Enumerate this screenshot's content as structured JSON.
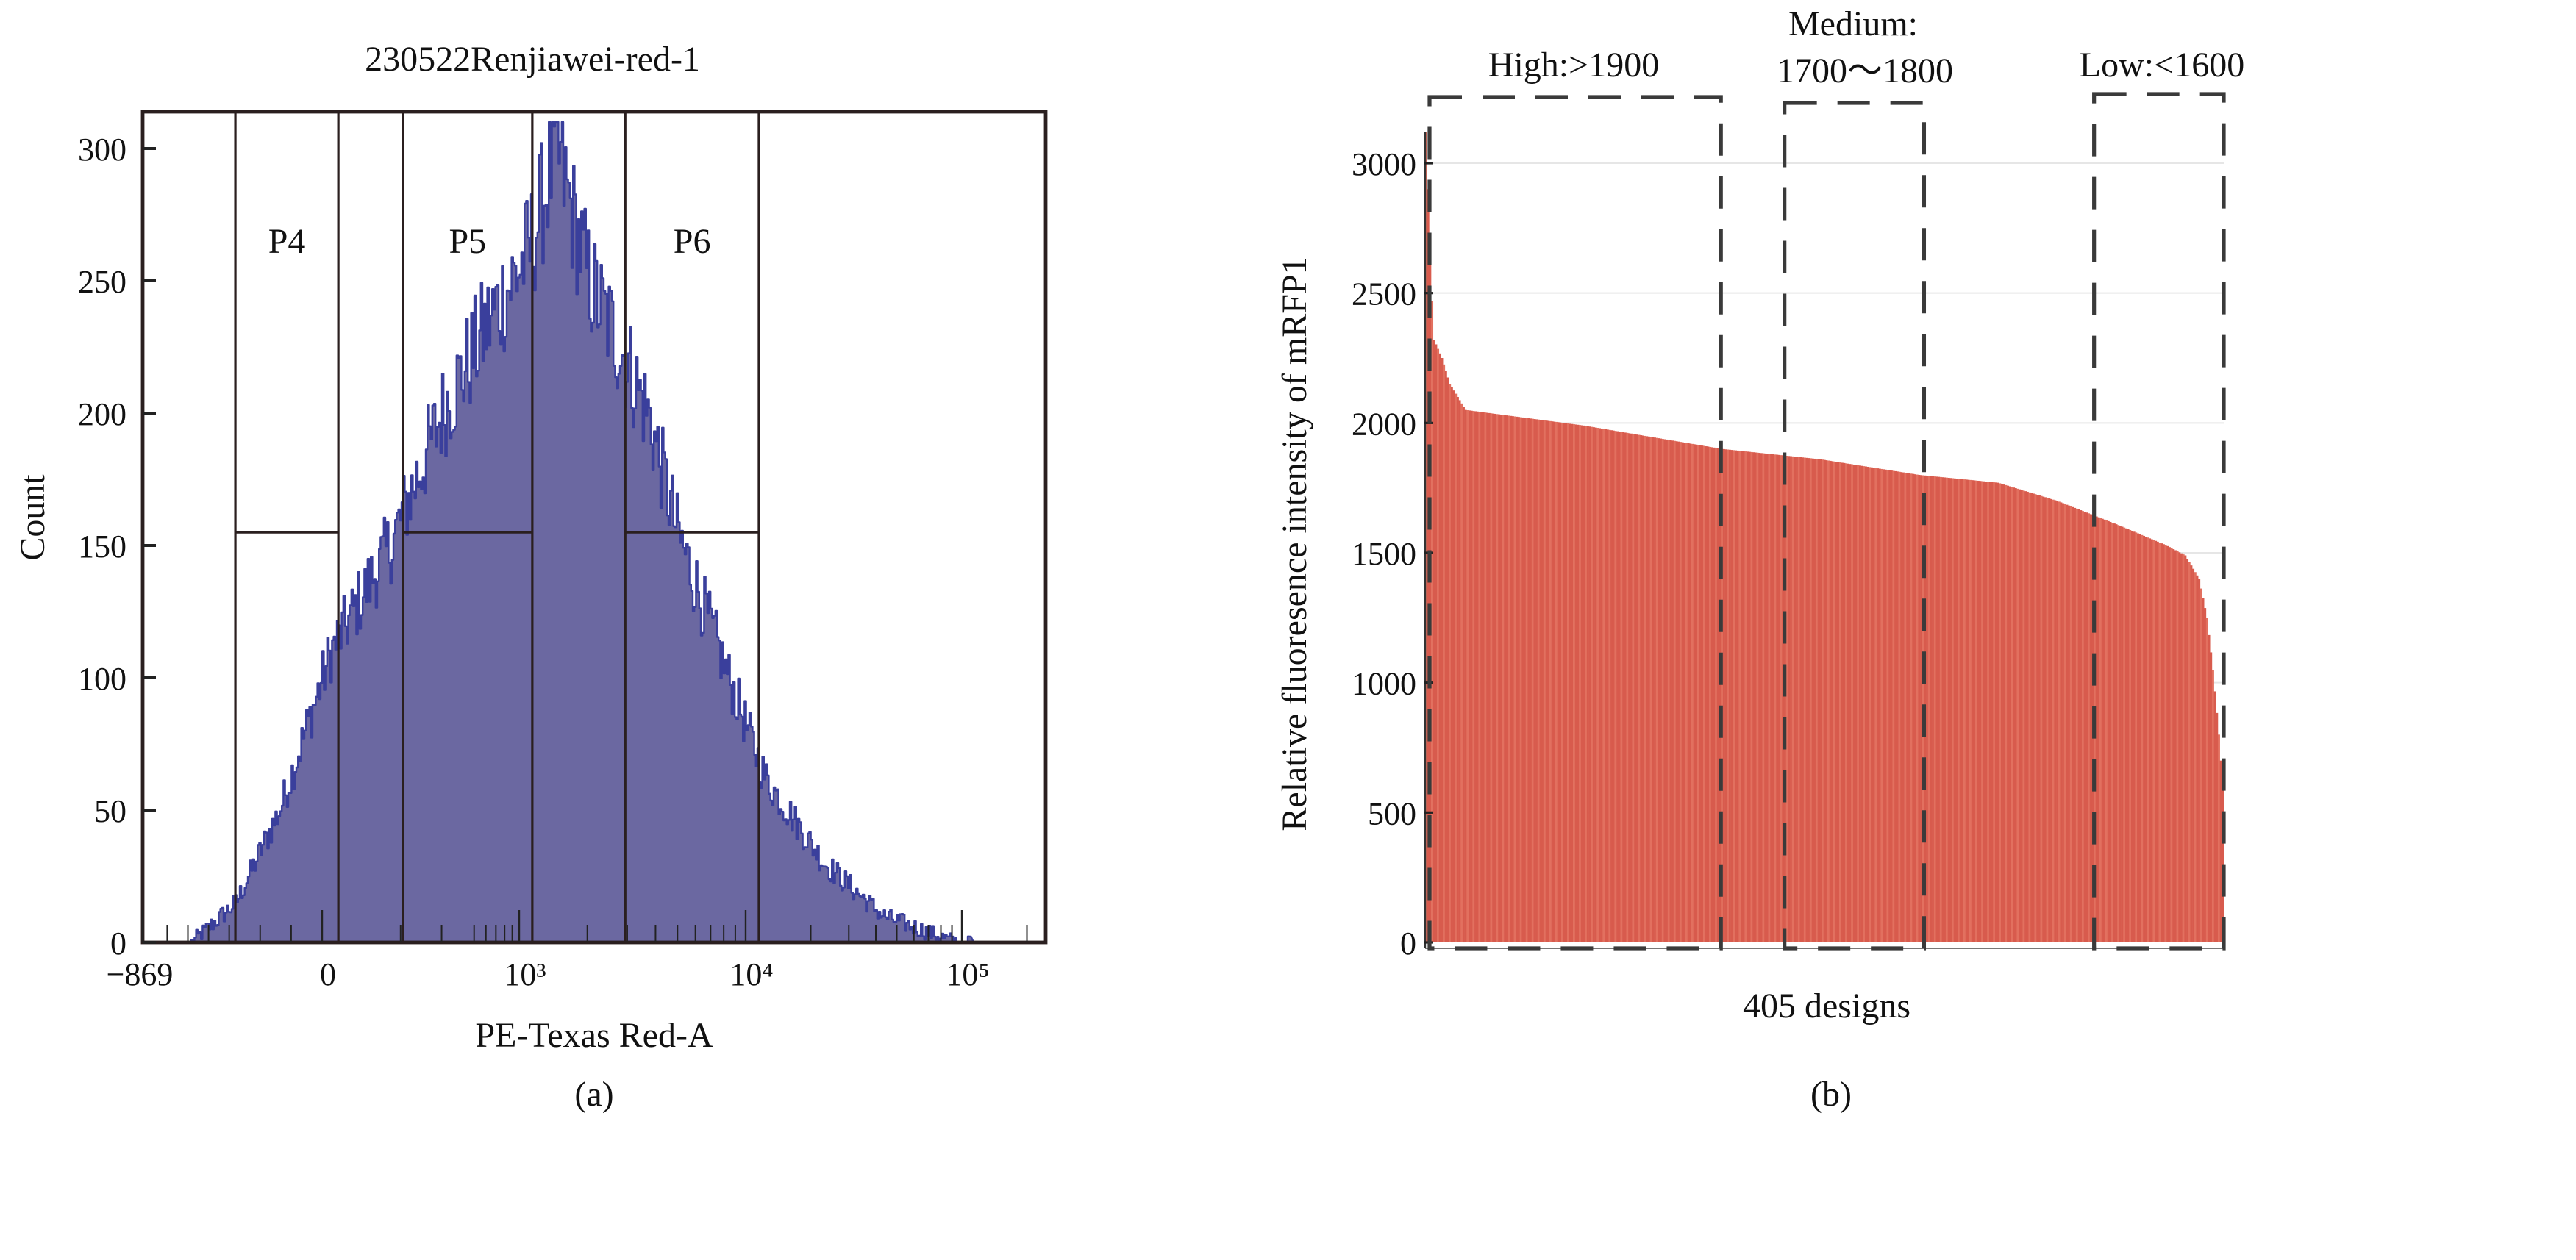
{
  "chart_data": [
    {
      "panel": "(a)",
      "type": "area",
      "title": "230522Renjiawei-red-1",
      "xlabel": "PE-Texas Red-A",
      "ylabel": "Count",
      "x_scale": "biexponential",
      "xlim": [
        -869,
        245000
      ],
      "ylim": [
        0,
        310
      ],
      "x_ticks": [
        "−869",
        "0",
        "10³",
        "10⁴",
        "10⁵"
      ],
      "x_tick_values": [
        -869,
        0,
        1000,
        10000,
        100000
      ],
      "y_ticks": [
        "0",
        "50",
        "100",
        "150",
        "200",
        "250",
        "300"
      ],
      "y_tick_values": [
        0,
        50,
        100,
        150,
        200,
        250,
        300
      ],
      "histogram_envelope": [
        [
          -634,
          0
        ],
        [
          -420,
          15
        ],
        [
          -207,
          50
        ],
        [
          13,
          110
        ],
        [
          122,
          150
        ],
        [
          300,
          200
        ],
        [
          590,
          232
        ],
        [
          1110,
          262
        ],
        [
          1453,
          300
        ],
        [
          1740,
          272
        ],
        [
          2020,
          250
        ],
        [
          2940,
          220
        ],
        [
          3680,
          200
        ],
        [
          4960,
          155
        ],
        [
          8360,
          100
        ],
        [
          12260,
          62
        ],
        [
          22960,
          30
        ],
        [
          42950,
          10
        ],
        [
          94000,
          0
        ]
      ],
      "peak_count": 310,
      "gates": [
        {
          "name": "P4",
          "x_from": -420,
          "x_to": 25,
          "level": 155
        },
        {
          "name": "P5",
          "x_from": 156,
          "x_to": 1143,
          "level": 155
        },
        {
          "name": "P6",
          "x_from": 2940,
          "x_to": 11510,
          "level": 155
        }
      ],
      "caption": "(a)",
      "colors": {
        "fill": "#6b68a1",
        "outline": "#3a3f9c",
        "frame": "#2a1f1f"
      }
    },
    {
      "panel": "(b)",
      "type": "bar",
      "xlabel": "405 designs",
      "ylabel": "Relative fluoresence intensity of mRFP1",
      "n_bars": 405,
      "ylim": [
        0,
        3250
      ],
      "y_ticks": [
        "0",
        "500",
        "1000",
        "1500",
        "2000",
        "2500",
        "3000"
      ],
      "y_tick_values": [
        0,
        500,
        1000,
        1500,
        2000,
        2500,
        3000
      ],
      "grid": true,
      "sorted_values_keypoints": [
        [
          0,
          3120
        ],
        [
          1,
          2900
        ],
        [
          2,
          2620
        ],
        [
          4,
          2320
        ],
        [
          8,
          2250
        ],
        [
          12,
          2150
        ],
        [
          20,
          2050
        ],
        [
          40,
          2030
        ],
        [
          80,
          1990
        ],
        [
          150,
          1900
        ],
        [
          200,
          1860
        ],
        [
          250,
          1800
        ],
        [
          290,
          1770
        ],
        [
          320,
          1700
        ],
        [
          350,
          1610
        ],
        [
          375,
          1530
        ],
        [
          385,
          1490
        ],
        [
          392,
          1400
        ],
        [
          396,
          1250
        ],
        [
          399,
          1050
        ],
        [
          402,
          800
        ],
        [
          404,
          600
        ]
      ],
      "groups": [
        {
          "label": "High:>1900",
          "rank_from": 0,
          "rank_to": 149
        },
        {
          "label_line1": "Medium:",
          "label_line2": "1700～1800",
          "rank_from": 180,
          "rank_to": 252
        },
        {
          "label": "Low:<1600",
          "rank_from": 337,
          "rank_to": 404
        }
      ],
      "caption": "(b)",
      "colors": {
        "bar": "#d85b4d",
        "bar_alt": "#e2705f",
        "grid": "#e6e6e6",
        "dash": "#3a3a3a"
      }
    }
  ]
}
